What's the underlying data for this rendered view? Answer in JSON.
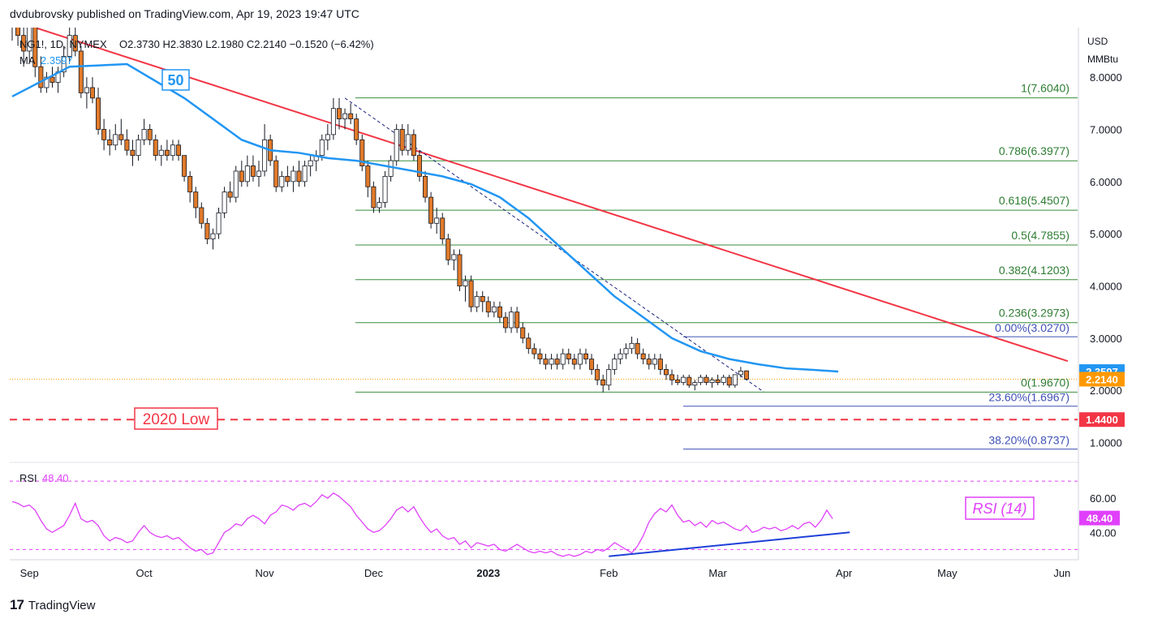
{
  "publisher": "dvdubrovsky published on TradingView.com, Apr 19, 2023 19:47 UTC",
  "footer": {
    "brand": "TradingView",
    "logo": "tradingview-logo"
  },
  "header": {
    "symbol": "NG1!, 1D, NYMEX",
    "ohlc": "O2.3730  H2.3830  L2.1980  C2.2140  −0.1520 (−6.42%)",
    "ma_label": "MA",
    "ma_value": "2.3597"
  },
  "axis": {
    "unit1": "USD",
    "unit2": "MMBtu"
  },
  "chart_data": {
    "type": "candlestick",
    "ylim": [
      0.62,
      8.95
    ],
    "yticks": [
      {
        "v": 8.0,
        "label": "8.0000"
      },
      {
        "v": 7.0,
        "label": "7.0000"
      },
      {
        "v": 6.0,
        "label": "6.0000"
      },
      {
        "v": 5.0,
        "label": "5.0000"
      },
      {
        "v": 4.0,
        "label": "4.0000"
      },
      {
        "v": 3.0,
        "label": "3.0000"
      },
      {
        "v": 2.0,
        "label": "2.0000"
      },
      {
        "v": 1.0,
        "label": "1.0000"
      }
    ],
    "xticks": [
      {
        "i": 3,
        "label": "Sep"
      },
      {
        "i": 23,
        "label": "Oct"
      },
      {
        "i": 44,
        "label": "Nov"
      },
      {
        "i": 63,
        "label": "Dec"
      },
      {
        "i": 83,
        "label": "2023"
      },
      {
        "i": 104,
        "label": "Feb"
      },
      {
        "i": 123,
        "label": "Mar"
      },
      {
        "i": 145,
        "label": "Apr"
      },
      {
        "i": 163,
        "label": "May"
      },
      {
        "i": 183,
        "label": "Jun"
      }
    ],
    "candles": [
      [
        9.3,
        9.6,
        8.7,
        9.1
      ],
      [
        9.1,
        9.4,
        8.6,
        8.8
      ],
      [
        8.8,
        9.0,
        8.2,
        8.5
      ],
      [
        8.5,
        9.2,
        8.3,
        9.0
      ],
      [
        9.0,
        9.1,
        8.0,
        8.2
      ],
      [
        8.2,
        8.4,
        7.7,
        7.8
      ],
      [
        7.8,
        8.1,
        7.7,
        8.0
      ],
      [
        8.0,
        8.2,
        7.8,
        7.9
      ],
      [
        7.9,
        8.2,
        7.7,
        8.1
      ],
      [
        8.1,
        8.6,
        8.0,
        8.4
      ],
      [
        8.4,
        9.0,
        8.3,
        8.8
      ],
      [
        8.8,
        9.3,
        8.4,
        8.5
      ],
      [
        8.5,
        8.6,
        7.6,
        7.7
      ],
      [
        7.7,
        8.0,
        7.4,
        7.8
      ],
      [
        7.8,
        8.0,
        7.5,
        7.6
      ],
      [
        7.6,
        7.8,
        6.9,
        7.0
      ],
      [
        7.0,
        7.2,
        6.6,
        6.8
      ],
      [
        6.8,
        7.0,
        6.5,
        6.7
      ],
      [
        6.7,
        7.1,
        6.6,
        6.9
      ],
      [
        6.9,
        7.2,
        6.7,
        6.8
      ],
      [
        6.8,
        7.0,
        6.5,
        6.6
      ],
      [
        6.6,
        6.8,
        6.3,
        6.5
      ],
      [
        6.5,
        6.9,
        6.4,
        6.8
      ],
      [
        6.8,
        7.2,
        6.7,
        7.0
      ],
      [
        7.0,
        7.1,
        6.7,
        6.8
      ],
      [
        6.8,
        6.9,
        6.4,
        6.5
      ],
      [
        6.5,
        6.7,
        6.3,
        6.6
      ],
      [
        6.6,
        6.8,
        6.4,
        6.5
      ],
      [
        6.5,
        6.8,
        6.4,
        6.7
      ],
      [
        6.7,
        6.8,
        6.4,
        6.5
      ],
      [
        6.5,
        6.5,
        6.0,
        6.1
      ],
      [
        6.1,
        6.2,
        5.6,
        5.8
      ],
      [
        5.8,
        5.9,
        5.3,
        5.5
      ],
      [
        5.5,
        5.6,
        5.1,
        5.2
      ],
      [
        5.2,
        5.3,
        4.8,
        4.9
      ],
      [
        4.9,
        5.1,
        4.7,
        5.0
      ],
      [
        5.0,
        5.5,
        4.9,
        5.4
      ],
      [
        5.4,
        5.9,
        5.3,
        5.8
      ],
      [
        5.8,
        6.0,
        5.6,
        5.7
      ],
      [
        5.7,
        6.3,
        5.6,
        6.2
      ],
      [
        6.2,
        6.4,
        5.9,
        6.0
      ],
      [
        6.0,
        6.5,
        5.9,
        6.3
      ],
      [
        6.3,
        6.5,
        6.0,
        6.1
      ],
      [
        6.1,
        6.4,
        5.9,
        6.2
      ],
      [
        6.2,
        7.1,
        6.1,
        6.8
      ],
      [
        6.8,
        6.9,
        6.3,
        6.4
      ],
      [
        6.4,
        6.5,
        5.8,
        5.9
      ],
      [
        5.9,
        6.2,
        5.8,
        6.1
      ],
      [
        6.1,
        6.3,
        5.9,
        6.0
      ],
      [
        6.0,
        6.3,
        5.8,
        6.2
      ],
      [
        6.2,
        6.4,
        5.9,
        6.0
      ],
      [
        6.0,
        6.4,
        5.9,
        6.3
      ],
      [
        6.3,
        6.5,
        6.1,
        6.4
      ],
      [
        6.4,
        6.6,
        6.2,
        6.5
      ],
      [
        6.5,
        6.9,
        6.4,
        6.8
      ],
      [
        6.8,
        7.1,
        6.6,
        6.9
      ],
      [
        6.9,
        7.6,
        6.8,
        7.4
      ],
      [
        7.4,
        7.6,
        7.0,
        7.2
      ],
      [
        7.2,
        7.4,
        7.0,
        7.3
      ],
      [
        7.3,
        7.5,
        7.1,
        7.2
      ],
      [
        7.2,
        7.3,
        6.7,
        6.8
      ],
      [
        6.8,
        6.9,
        6.2,
        6.3
      ],
      [
        6.3,
        6.4,
        5.7,
        5.9
      ],
      [
        5.9,
        6.0,
        5.4,
        5.5
      ],
      [
        5.5,
        5.7,
        5.4,
        5.6
      ],
      [
        5.6,
        6.2,
        5.5,
        6.1
      ],
      [
        6.1,
        6.5,
        6.0,
        6.4
      ],
      [
        6.4,
        7.1,
        6.3,
        7.0
      ],
      [
        7.0,
        7.1,
        6.5,
        6.6
      ],
      [
        6.6,
        7.1,
        6.5,
        6.9
      ],
      [
        6.9,
        7.0,
        6.4,
        6.5
      ],
      [
        6.5,
        6.6,
        6.0,
        6.1
      ],
      [
        6.1,
        6.2,
        5.6,
        5.7
      ],
      [
        5.7,
        5.8,
        5.1,
        5.2
      ],
      [
        5.2,
        5.5,
        5.0,
        5.3
      ],
      [
        5.3,
        5.4,
        4.8,
        4.9
      ],
      [
        4.9,
        5.0,
        4.4,
        4.5
      ],
      [
        4.5,
        4.7,
        4.3,
        4.6
      ],
      [
        4.6,
        4.7,
        3.9,
        4.0
      ],
      [
        4.0,
        4.2,
        3.7,
        4.1
      ],
      [
        4.1,
        4.2,
        3.5,
        3.6
      ],
      [
        3.6,
        3.9,
        3.5,
        3.8
      ],
      [
        3.8,
        3.9,
        3.5,
        3.7
      ],
      [
        3.7,
        3.8,
        3.4,
        3.5
      ],
      [
        3.5,
        3.7,
        3.4,
        3.6
      ],
      [
        3.6,
        3.7,
        3.3,
        3.4
      ],
      [
        3.4,
        3.5,
        3.1,
        3.2
      ],
      [
        3.2,
        3.6,
        3.1,
        3.5
      ],
      [
        3.5,
        3.6,
        3.1,
        3.2
      ],
      [
        3.2,
        3.3,
        2.9,
        3.0
      ],
      [
        3.0,
        3.1,
        2.7,
        2.8
      ],
      [
        2.8,
        2.9,
        2.6,
        2.7
      ],
      [
        2.7,
        2.8,
        2.5,
        2.6
      ],
      [
        2.6,
        2.7,
        2.4,
        2.5
      ],
      [
        2.5,
        2.7,
        2.4,
        2.6
      ],
      [
        2.6,
        2.7,
        2.4,
        2.5
      ],
      [
        2.5,
        2.8,
        2.4,
        2.7
      ],
      [
        2.7,
        2.8,
        2.5,
        2.6
      ],
      [
        2.6,
        2.7,
        2.4,
        2.5
      ],
      [
        2.5,
        2.8,
        2.4,
        2.7
      ],
      [
        2.7,
        2.8,
        2.5,
        2.6
      ],
      [
        2.6,
        2.7,
        2.3,
        2.4
      ],
      [
        2.4,
        2.5,
        2.1,
        2.2
      ],
      [
        2.2,
        2.3,
        1.96,
        2.1
      ],
      [
        2.1,
        2.5,
        2.0,
        2.4
      ],
      [
        2.4,
        2.7,
        2.3,
        2.6
      ],
      [
        2.6,
        2.8,
        2.5,
        2.7
      ],
      [
        2.7,
        2.9,
        2.6,
        2.8
      ],
      [
        2.8,
        3.03,
        2.7,
        2.9
      ],
      [
        2.9,
        3.0,
        2.6,
        2.7
      ],
      [
        2.7,
        2.8,
        2.5,
        2.6
      ],
      [
        2.6,
        2.7,
        2.4,
        2.5
      ],
      [
        2.5,
        2.7,
        2.4,
        2.6
      ],
      [
        2.6,
        2.7,
        2.3,
        2.4
      ],
      [
        2.4,
        2.5,
        2.2,
        2.3
      ],
      [
        2.3,
        2.4,
        2.1,
        2.2
      ],
      [
        2.2,
        2.3,
        2.1,
        2.15
      ],
      [
        2.15,
        2.3,
        2.1,
        2.25
      ],
      [
        2.25,
        2.3,
        2.05,
        2.1
      ],
      [
        2.1,
        2.2,
        2.0,
        2.15
      ],
      [
        2.15,
        2.3,
        2.1,
        2.25
      ],
      [
        2.25,
        2.3,
        2.1,
        2.15
      ],
      [
        2.15,
        2.25,
        2.05,
        2.2
      ],
      [
        2.2,
        2.3,
        2.1,
        2.15
      ],
      [
        2.15,
        2.3,
        2.1,
        2.25
      ],
      [
        2.25,
        2.3,
        2.05,
        2.1
      ],
      [
        2.1,
        2.3,
        2.05,
        2.3
      ],
      [
        2.3,
        2.45,
        2.25,
        2.37
      ],
      [
        2.373,
        2.383,
        2.198,
        2.214
      ]
    ],
    "ma": {
      "name": "50",
      "value": "2.3597",
      "points": [
        [
          0,
          7.63
        ],
        [
          10,
          8.2
        ],
        [
          20,
          8.25
        ],
        [
          30,
          7.6
        ],
        [
          40,
          6.8
        ],
        [
          45,
          6.6
        ],
        [
          50,
          6.55
        ],
        [
          55,
          6.45
        ],
        [
          60,
          6.4
        ],
        [
          65,
          6.3
        ],
        [
          70,
          6.2
        ],
        [
          75,
          6.1
        ],
        [
          80,
          5.95
        ],
        [
          85,
          5.7
        ],
        [
          90,
          5.3
        ],
        [
          95,
          4.8
        ],
        [
          100,
          4.3
        ],
        [
          105,
          3.8
        ],
        [
          110,
          3.4
        ],
        [
          115,
          3.0
        ],
        [
          120,
          2.75
        ],
        [
          125,
          2.6
        ],
        [
          130,
          2.5
        ],
        [
          135,
          2.42
        ],
        [
          140,
          2.39
        ],
        [
          144,
          2.36
        ]
      ]
    },
    "trendline": {
      "from": [
        4,
        8.95
      ],
      "to": [
        184,
        2.56
      ]
    },
    "diag_line": {
      "from": [
        58,
        7.6
      ],
      "to": [
        131,
        1.97
      ]
    },
    "fib_retracement": [
      {
        "v": 7.604,
        "label": "1(7.6040)"
      },
      {
        "v": 6.3977,
        "label": "0.786(6.3977)"
      },
      {
        "v": 5.4507,
        "label": "0.618(5.4507)"
      },
      {
        "v": 4.7855,
        "label": "0.5(4.7855)"
      },
      {
        "v": 4.1203,
        "label": "0.382(4.1203)"
      },
      {
        "v": 3.2973,
        "label": "0.236(3.2973)"
      },
      {
        "v": 1.967,
        "label": "0(1.9670)"
      }
    ],
    "fib_extension": [
      {
        "v": 3.027,
        "label": "0.00%(3.0270)"
      },
      {
        "v": 1.6967,
        "label": "23.60%(1.6967)"
      },
      {
        "v": 0.8737,
        "label": "38.20%(0.8737)"
      }
    ],
    "support": {
      "v": 1.44,
      "label": "2020 Low",
      "price": "1.4400"
    },
    "last_price": {
      "v": 2.214,
      "label": "2.2140"
    },
    "ma_price": {
      "v": 2.3597,
      "label": "2.3597"
    },
    "ma_badge": "50",
    "rsi": {
      "title": "RSI",
      "value": "48.40",
      "badge": "RSI (14)",
      "ylim": [
        24,
        80
      ],
      "yticks": [
        {
          "v": 60,
          "label": "60.00"
        },
        {
          "v": 40,
          "label": "40.00"
        }
      ],
      "bands": [
        70,
        30
      ],
      "values": [
        58,
        57,
        55,
        56,
        53,
        47,
        42,
        40,
        42,
        44,
        50,
        57,
        48,
        46,
        47,
        44,
        38,
        35,
        37,
        36,
        34,
        35,
        40,
        44,
        40,
        38,
        37,
        38,
        36,
        37,
        34,
        31,
        29,
        30,
        27,
        28,
        34,
        40,
        42,
        45,
        44,
        48,
        50,
        48,
        45,
        50,
        52,
        56,
        55,
        53,
        56,
        57,
        55,
        58,
        62,
        60,
        63,
        61,
        58,
        55,
        50,
        46,
        42,
        40,
        41,
        44,
        48,
        53,
        55,
        52,
        55,
        49,
        44,
        40,
        42,
        38,
        36,
        37,
        33,
        35,
        31,
        34,
        33,
        32,
        33,
        30,
        29,
        31,
        33,
        31,
        29,
        28,
        29,
        28,
        29,
        27,
        26,
        27,
        26,
        27,
        29,
        28,
        30,
        29,
        31,
        34,
        32,
        30,
        28,
        32,
        38,
        46,
        51,
        54,
        52,
        56,
        50,
        46,
        47,
        44,
        46,
        43,
        47,
        45,
        46,
        44,
        42,
        41,
        44,
        40,
        41,
        43,
        42,
        43,
        41,
        42,
        44,
        42,
        45,
        46,
        43,
        47,
        53,
        48
      ]
    },
    "rsi_divergence": {
      "from": [
        104,
        26
      ],
      "to": [
        146,
        40
      ]
    }
  }
}
